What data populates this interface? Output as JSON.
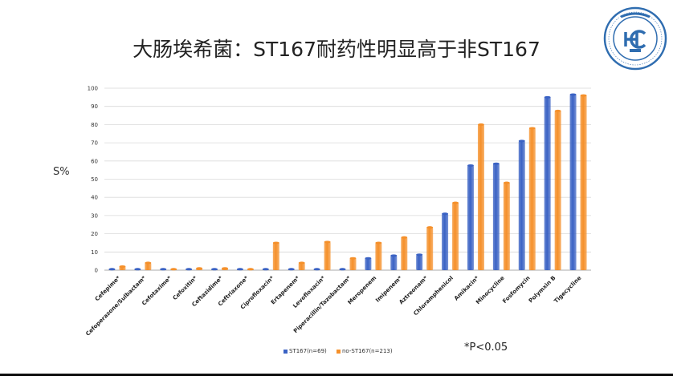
{
  "slide": {
    "title": "大肠埃希菌：ST167耐药性明显高于非ST167",
    "footnote": "*P<0.05"
  },
  "chart_data": {
    "type": "bar",
    "ylabel": "S%",
    "ylim": [
      0,
      100
    ],
    "yticks": [
      0,
      10,
      20,
      30,
      40,
      50,
      60,
      70,
      80,
      90,
      100
    ],
    "grid": true,
    "legend_position": "bottom",
    "categories": [
      "Cefepime*",
      "Cefoperazone/Sulbactam*",
      "Cefotaxime*",
      "Cefoxitin*",
      "Ceftazidime*",
      "Ceftriaxone*",
      "Ciprofloxacin*",
      "Ertapenem*",
      "Levofloxacin*",
      "Piperacillin/Tazobactam*",
      "Meropenem",
      "Imipenem*",
      "Aztreonam*",
      "Chloramphenicol",
      "Amikacin*",
      "Minocycline",
      "Fosfomycin",
      "Polymxin B",
      "Tigecycline"
    ],
    "series": [
      {
        "name": "ST167(n=69)",
        "color": "#3a62c4",
        "values": [
          0,
          0,
          0,
          0,
          0,
          0,
          0,
          0,
          0,
          0,
          6.5,
          8,
          8.5,
          31,
          57.5,
          58.5,
          71,
          95,
          96.5
        ]
      },
      {
        "name": "no-ST167(n=213)",
        "color": "#f5902a",
        "values": [
          2,
          4,
          0.5,
          1,
          1,
          0.5,
          15,
          4,
          15.5,
          6.5,
          15,
          18,
          23.5,
          37,
          80,
          48,
          78,
          87.5,
          96
        ]
      }
    ]
  }
}
